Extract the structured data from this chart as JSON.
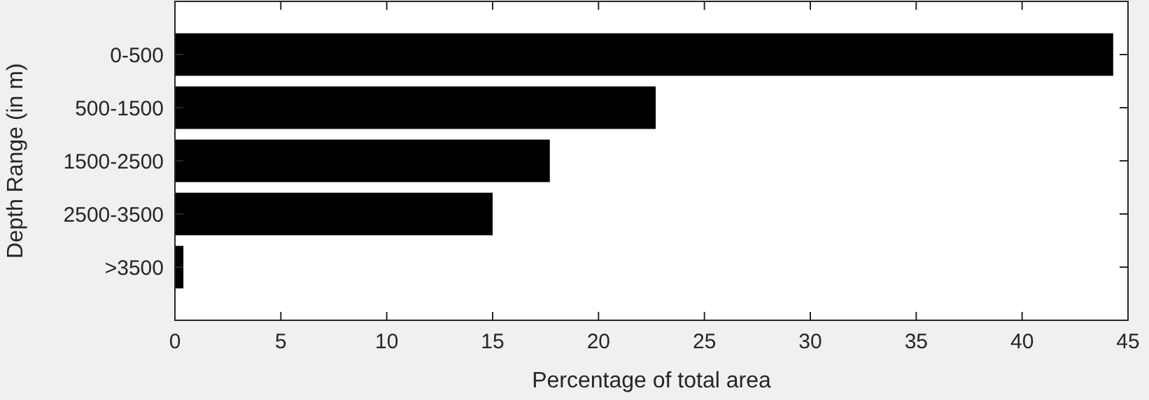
{
  "chart_data": {
    "type": "bar",
    "orientation": "horizontal",
    "categories": [
      "0-500",
      "500-1500",
      "1500-2500",
      "2500-3500",
      ">3500"
    ],
    "values": [
      44.3,
      22.7,
      17.7,
      15.0,
      0.4
    ],
    "color": "#000000",
    "xlim": [
      0,
      45
    ],
    "xticks": [
      0,
      5,
      10,
      15,
      20,
      25,
      30,
      35,
      40,
      45
    ],
    "xlabel": "Percentage of total area",
    "ylabel": "Depth Range (in m)",
    "grid": false
  }
}
